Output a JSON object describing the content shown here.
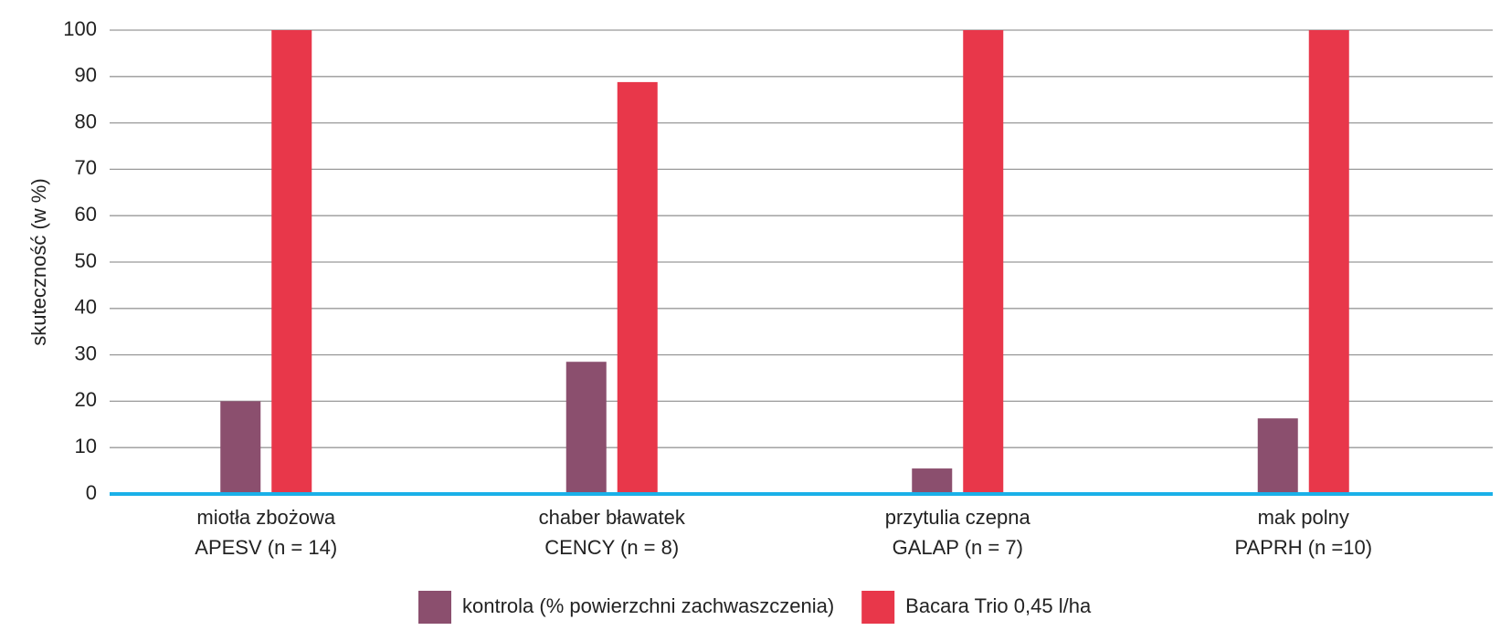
{
  "chart_data": {
    "type": "bar",
    "y_label": "skuteczność (w %)",
    "categories": [
      [
        "miotła zbożowa",
        "APESV (n = 14)"
      ],
      [
        "chaber bławatek",
        "CENCY (n = 8)"
      ],
      [
        "przytulia czepna",
        "GALAP (n = 7)"
      ],
      [
        "mak polny",
        "PAPRH (n =10)"
      ]
    ],
    "series": [
      {
        "name": "kontrola (% powierzchni zachwaszczenia)",
        "color": "#8b4f6e",
        "values": [
          20,
          28.5,
          5.5,
          16.3
        ]
      },
      {
        "name": "Bacara Trio 0,45 l/ha",
        "color": "#e8374a",
        "values": [
          100,
          88.8,
          100,
          100
        ]
      }
    ],
    "ylim": [
      0,
      100
    ],
    "yticks": [
      0,
      10,
      20,
      30,
      40,
      50,
      60,
      70,
      80,
      90,
      100
    ],
    "grid": true,
    "legend": "bottom"
  }
}
